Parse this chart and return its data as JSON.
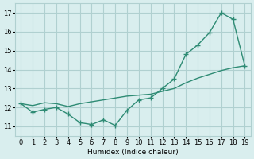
{
  "x": [
    0,
    1,
    2,
    3,
    4,
    5,
    6,
    7,
    8,
    9,
    10,
    11,
    12,
    13,
    14,
    15,
    16,
    17,
    18,
    19
  ],
  "y_curve": [
    12.2,
    11.75,
    11.9,
    12.0,
    11.65,
    11.2,
    11.1,
    11.35,
    11.05,
    11.85,
    12.4,
    12.5,
    13.0,
    13.5,
    14.8,
    15.3,
    15.95,
    17.0,
    16.65,
    14.2
  ],
  "y_line": [
    12.2,
    12.1,
    12.25,
    12.2,
    12.05,
    12.2,
    12.3,
    12.4,
    12.5,
    12.6,
    12.65,
    12.7,
    12.85,
    13.0,
    13.3,
    13.55,
    13.75,
    13.95,
    14.1,
    14.2
  ],
  "color": "#2e8b74",
  "bg_color": "#d9eeee",
  "grid_color": "#b0d0d0",
  "xlabel": "Humidex (Indice chaleur)",
  "ylim": [
    10.5,
    17.5
  ],
  "xlim": [
    -0.5,
    19.5
  ],
  "yticks": [
    11,
    12,
    13,
    14,
    15,
    16,
    17
  ],
  "xticks": [
    0,
    1,
    2,
    3,
    4,
    5,
    6,
    7,
    8,
    9,
    10,
    11,
    12,
    13,
    14,
    15,
    16,
    17,
    18,
    19
  ]
}
